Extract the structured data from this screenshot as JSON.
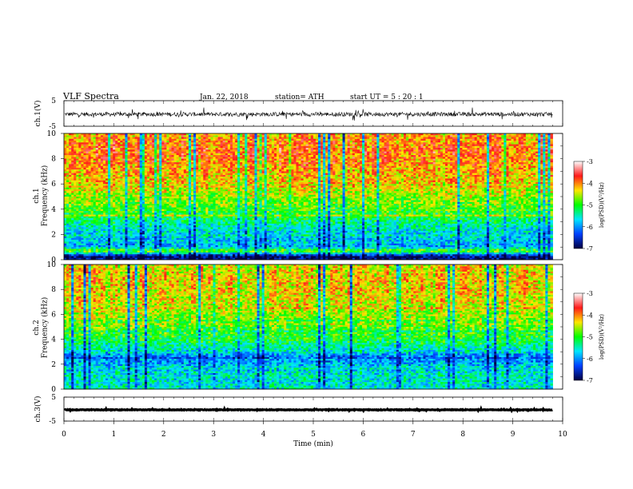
{
  "header": {
    "title": "VLF  Spectra",
    "date": "Jan. 22, 2018",
    "station": "station= ATH",
    "start": "start  UT  =    5  : 20 : 1"
  },
  "colorbar": {
    "label": "log(PSD)(V²/Hz)",
    "ticks": [
      "-3",
      "-4",
      "-5",
      "-6",
      "-7"
    ],
    "stops": [
      "#ffffff",
      "#ff1a1a",
      "#ffe600",
      "#00ff00",
      "#00e6ff",
      "#0040ff",
      "#000040"
    ]
  },
  "chart_data": [
    {
      "type": "line",
      "panel": "ch1-waveform",
      "ylabel": "ch.1(V)",
      "ylim": [
        -5,
        5
      ],
      "yticks": [
        "5",
        "-5"
      ],
      "xlim": [
        0,
        10
      ],
      "level": -0.3,
      "noise_amplitude": 1.6,
      "x_end": 9.8
    },
    {
      "type": "heatmap",
      "panel": "ch1-spectrogram",
      "ylabel": "ch.1\nFrequency  (kHz)",
      "ylim": [
        0,
        10
      ],
      "yticks": [
        "0",
        "2",
        "4",
        "6",
        "8",
        "10"
      ],
      "xlim": [
        0,
        10
      ],
      "x_end": 9.8,
      "profile": [
        {
          "f": 0.0,
          "v": -7.0
        },
        {
          "f": 0.3,
          "v": -6.8
        },
        {
          "f": 0.7,
          "v": -4.6
        },
        {
          "f": 1.0,
          "v": -5.9
        },
        {
          "f": 2.0,
          "v": -5.7
        },
        {
          "f": 2.8,
          "v": -5.4
        },
        {
          "f": 3.6,
          "v": -5.0
        },
        {
          "f": 5.0,
          "v": -4.6
        },
        {
          "f": 6.5,
          "v": -4.2
        },
        {
          "f": 8.5,
          "v": -3.9
        },
        {
          "f": 10.0,
          "v": -4.1
        }
      ]
    },
    {
      "type": "heatmap",
      "panel": "ch2-spectrogram",
      "ylabel": "ch.2\nFrequency  (kHz)",
      "ylim": [
        0,
        10
      ],
      "yticks": [
        "0",
        "2",
        "4",
        "6",
        "8",
        "10"
      ],
      "xlim": [
        0,
        10
      ],
      "x_end": 9.8,
      "profile": [
        {
          "f": 0.0,
          "v": -5.5
        },
        {
          "f": 0.5,
          "v": -5.6
        },
        {
          "f": 1.5,
          "v": -5.5
        },
        {
          "f": 2.5,
          "v": -6.2
        },
        {
          "f": 3.0,
          "v": -5.6
        },
        {
          "f": 4.0,
          "v": -5.1
        },
        {
          "f": 5.5,
          "v": -4.7
        },
        {
          "f": 7.0,
          "v": -4.4
        },
        {
          "f": 8.5,
          "v": -4.2
        },
        {
          "f": 10.0,
          "v": -4.4
        }
      ]
    },
    {
      "type": "line",
      "panel": "ch3-waveform",
      "ylabel": "ch.3(V)",
      "ylim": [
        -5,
        5
      ],
      "yticks": [
        "5",
        "-5"
      ],
      "xlim": [
        0,
        10
      ],
      "level": -0.3,
      "noise_amplitude": 0.25,
      "x_end": 9.8
    }
  ],
  "xaxis": {
    "label": "Time  (min)",
    "ticks": [
      "0",
      "1",
      "2",
      "3",
      "4",
      "5",
      "6",
      "7",
      "8",
      "9",
      "10"
    ]
  }
}
